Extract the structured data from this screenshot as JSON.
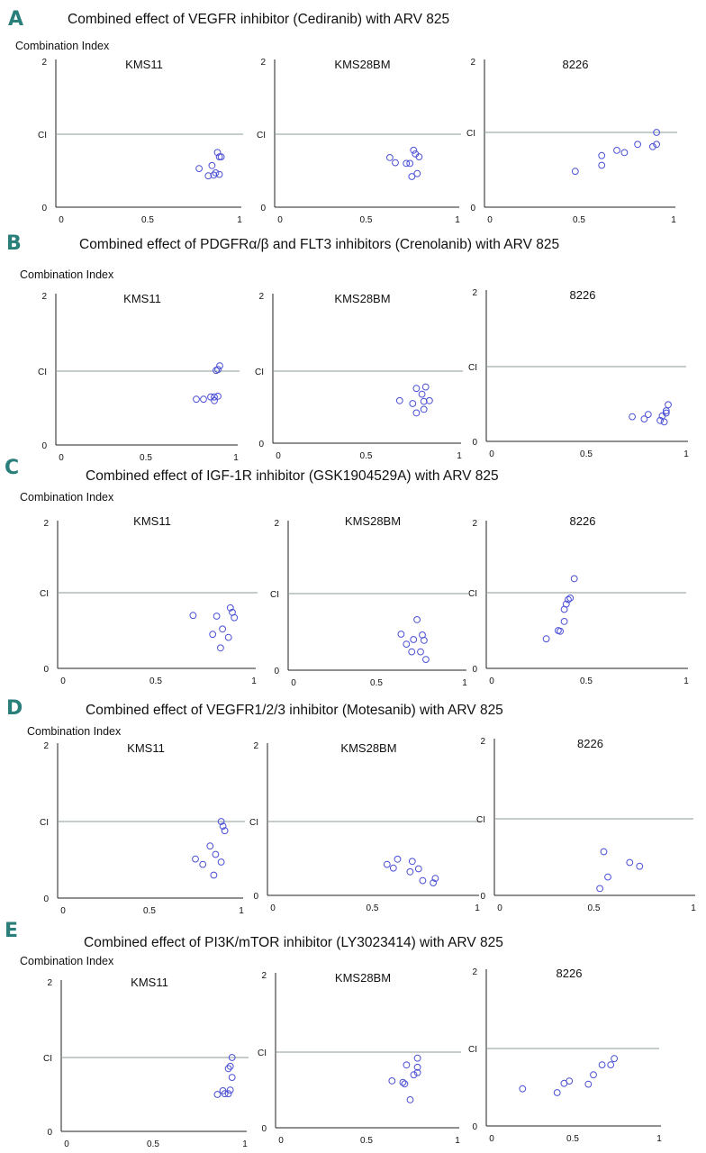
{
  "chart_data": [
    {
      "id": "A",
      "letter": "A",
      "title": "Combined effect of VEGFR inhibitor (Cediranib) with ARV 825",
      "ylabel": "Combination Index",
      "subplots": [
        {
          "type": "scatter",
          "title": "KMS11",
          "x_ticks": [
            "0",
            "0.5",
            "1"
          ],
          "y_ticks": [
            "0",
            "CI",
            "2"
          ],
          "xlim": [
            0,
            1
          ],
          "ylim": [
            0,
            2
          ],
          "reference_line": 1,
          "points": [
            [
              0.78,
              0.53
            ],
            [
              0.83,
              0.43
            ],
            [
              0.85,
              0.57
            ],
            [
              0.86,
              0.44
            ],
            [
              0.87,
              0.47
            ],
            [
              0.88,
              0.75
            ],
            [
              0.89,
              0.45
            ],
            [
              0.89,
              0.69
            ],
            [
              0.9,
              0.69
            ]
          ]
        },
        {
          "type": "scatter",
          "title": "KMS28BM",
          "x_ticks": [
            "0",
            "0.5",
            "1"
          ],
          "y_ticks": [
            "0",
            "CI",
            "2"
          ],
          "xlim": [
            0,
            1
          ],
          "ylim": [
            0,
            2
          ],
          "reference_line": 1,
          "points": [
            [
              0.63,
              0.68
            ],
            [
              0.66,
              0.61
            ],
            [
              0.72,
              0.6
            ],
            [
              0.74,
              0.6
            ],
            [
              0.75,
              0.42
            ],
            [
              0.76,
              0.78
            ],
            [
              0.77,
              0.73
            ],
            [
              0.78,
              0.46
            ],
            [
              0.79,
              0.69
            ]
          ]
        },
        {
          "type": "scatter",
          "title": "8226",
          "x_ticks": [
            "0",
            "0.5",
            "1"
          ],
          "y_ticks": [
            "0",
            "CI",
            "2"
          ],
          "xlim": [
            0,
            1
          ],
          "ylim": [
            0,
            2
          ],
          "reference_line": 1,
          "points": [
            [
              0.48,
              0.48
            ],
            [
              0.62,
              0.56
            ],
            [
              0.62,
              0.69
            ],
            [
              0.7,
              0.76
            ],
            [
              0.74,
              0.73
            ],
            [
              0.81,
              0.84
            ],
            [
              0.89,
              0.81
            ],
            [
              0.91,
              0.84
            ],
            [
              0.91,
              1.0
            ]
          ]
        }
      ]
    },
    {
      "id": "B",
      "letter": "B",
      "title": "Combined effect of PDGFRα/β and FLT3 inhibitors (Crenolanib) with ARV 825",
      "ylabel": "Combination Index",
      "subplots": [
        {
          "type": "scatter",
          "title": "KMS11",
          "x_ticks": [
            "0",
            "0.5",
            "1"
          ],
          "y_ticks": [
            "0",
            "CI",
            "2"
          ],
          "xlim": [
            0,
            1
          ],
          "ylim": [
            0,
            2
          ],
          "reference_line": 1,
          "points": [
            [
              0.78,
              0.62
            ],
            [
              0.82,
              0.62
            ],
            [
              0.86,
              0.65
            ],
            [
              0.88,
              0.65
            ],
            [
              0.88,
              0.6
            ],
            [
              0.9,
              0.66
            ],
            [
              0.89,
              1.01
            ],
            [
              0.9,
              1.02
            ],
            [
              0.91,
              1.07
            ]
          ]
        },
        {
          "type": "scatter",
          "title": "KMS28BM",
          "x_ticks": [
            "0",
            "0.5",
            "1"
          ],
          "y_ticks": [
            "0",
            "CI",
            "2"
          ],
          "xlim": [
            0,
            1
          ],
          "ylim": [
            0,
            2
          ],
          "reference_line": 1,
          "points": [
            [
              0.68,
              0.59
            ],
            [
              0.75,
              0.55
            ],
            [
              0.77,
              0.42
            ],
            [
              0.77,
              0.76
            ],
            [
              0.8,
              0.68
            ],
            [
              0.81,
              0.47
            ],
            [
              0.81,
              0.58
            ],
            [
              0.82,
              0.78
            ],
            [
              0.84,
              0.59
            ]
          ]
        },
        {
          "type": "scatter",
          "title": "8226",
          "x_ticks": [
            "0",
            "0.5",
            "1"
          ],
          "y_ticks": [
            "0",
            "CI",
            "2"
          ],
          "xlim": [
            0,
            1
          ],
          "ylim": [
            0,
            2
          ],
          "reference_line": 1,
          "points": [
            [
              0.73,
              0.33
            ],
            [
              0.79,
              0.3
            ],
            [
              0.81,
              0.36
            ],
            [
              0.87,
              0.28
            ],
            [
              0.88,
              0.34
            ],
            [
              0.89,
              0.26
            ],
            [
              0.9,
              0.38
            ],
            [
              0.9,
              0.41
            ],
            [
              0.91,
              0.49
            ]
          ]
        }
      ]
    },
    {
      "id": "C",
      "letter": "C",
      "title": "Combined effect of IGF-1R inhibitor (GSK1904529A) with ARV 825",
      "ylabel": "Combination Index",
      "subplots": [
        {
          "type": "scatter",
          "title": "KMS11",
          "x_ticks": [
            "0",
            "0.5",
            "1"
          ],
          "y_ticks": [
            "0",
            "CI",
            "2"
          ],
          "xlim": [
            0,
            1
          ],
          "ylim": [
            0,
            2
          ],
          "reference_line": 1,
          "points": [
            [
              0.69,
              0.7
            ],
            [
              0.79,
              0.45
            ],
            [
              0.81,
              0.69
            ],
            [
              0.83,
              0.27
            ],
            [
              0.84,
              0.52
            ],
            [
              0.87,
              0.41
            ],
            [
              0.88,
              0.8
            ],
            [
              0.89,
              0.74
            ],
            [
              0.9,
              0.67
            ]
          ]
        },
        {
          "type": "scatter",
          "title": "KMS28BM",
          "x_ticks": [
            "0",
            "0.5",
            "1"
          ],
          "y_ticks": [
            "0",
            "CI",
            "2"
          ],
          "xlim": [
            0,
            1
          ],
          "ylim": [
            0,
            2
          ],
          "reference_line": 1,
          "points": [
            [
              0.64,
              0.47
            ],
            [
              0.67,
              0.34
            ],
            [
              0.7,
              0.24
            ],
            [
              0.71,
              0.4
            ],
            [
              0.73,
              0.66
            ],
            [
              0.75,
              0.24
            ],
            [
              0.76,
              0.46
            ],
            [
              0.77,
              0.39
            ],
            [
              0.78,
              0.14
            ]
          ]
        },
        {
          "type": "scatter",
          "title": "8226",
          "x_ticks": [
            "0",
            "0.5",
            "1"
          ],
          "y_ticks": [
            "0",
            "CI",
            "2"
          ],
          "xlim": [
            0,
            1
          ],
          "ylim": [
            0,
            2
          ],
          "reference_line": 1,
          "points": [
            [
              0.3,
              0.39
            ],
            [
              0.36,
              0.5
            ],
            [
              0.37,
              0.49
            ],
            [
              0.39,
              0.62
            ],
            [
              0.39,
              0.78
            ],
            [
              0.4,
              0.85
            ],
            [
              0.41,
              0.91
            ],
            [
              0.42,
              0.93
            ],
            [
              0.44,
              1.2
            ]
          ]
        }
      ]
    },
    {
      "id": "D",
      "letter": "D",
      "title": "Combined effect of VEGFR1/2/3 inhibitor (Motesanib) with ARV 825",
      "ylabel": "Combination Index",
      "subplots": [
        {
          "type": "scatter",
          "title": "KMS11",
          "x_ticks": [
            "0",
            "0.5",
            "1"
          ],
          "y_ticks": [
            "0",
            "CI",
            "2"
          ],
          "xlim": [
            0,
            1
          ],
          "ylim": [
            0,
            2
          ],
          "reference_line": 1,
          "points": [
            [
              0.75,
              0.51
            ],
            [
              0.79,
              0.44
            ],
            [
              0.83,
              0.68
            ],
            [
              0.85,
              0.3
            ],
            [
              0.86,
              0.57
            ],
            [
              0.89,
              0.47
            ],
            [
              0.89,
              1.0
            ],
            [
              0.9,
              0.94
            ],
            [
              0.91,
              0.88
            ]
          ]
        },
        {
          "type": "scatter",
          "title": "KMS28BM",
          "x_ticks": [
            "0",
            "0.5",
            "1"
          ],
          "y_ticks": [
            "0",
            "CI",
            "2"
          ],
          "xlim": [
            0,
            1
          ],
          "ylim": [
            0,
            2
          ],
          "reference_line": 1,
          "points": [
            [
              0.57,
              0.42
            ],
            [
              0.6,
              0.37
            ],
            [
              0.62,
              0.49
            ],
            [
              0.68,
              0.32
            ],
            [
              0.69,
              0.46
            ],
            [
              0.72,
              0.36
            ],
            [
              0.74,
              0.2
            ],
            [
              0.79,
              0.17
            ],
            [
              0.8,
              0.23
            ]
          ]
        },
        {
          "type": "scatter",
          "title": "8226",
          "x_ticks": [
            "0",
            "0.5",
            "1"
          ],
          "y_ticks": [
            "0",
            "CI",
            "2"
          ],
          "xlim": [
            0,
            1
          ],
          "ylim": [
            0,
            2
          ],
          "reference_line": 1,
          "points": [
            [
              0.53,
              0.09
            ],
            [
              0.55,
              0.57
            ],
            [
              0.57,
              0.24
            ],
            [
              0.68,
              0.43
            ],
            [
              0.73,
              0.38
            ]
          ]
        }
      ]
    },
    {
      "id": "E",
      "letter": "E",
      "title": "Combined effect of PI3K/mTOR inhibitor (LY3023414) with ARV 825",
      "ylabel": "Combination Index",
      "subplots": [
        {
          "type": "scatter",
          "title": "KMS11",
          "x_ticks": [
            "0",
            "0.5",
            "1"
          ],
          "y_ticks": [
            "0",
            "CI",
            "2"
          ],
          "xlim": [
            0,
            1
          ],
          "ylim": [
            0,
            2
          ],
          "reference_line": 1,
          "points": [
            [
              0.85,
              0.5
            ],
            [
              0.88,
              0.55
            ],
            [
              0.89,
              0.51
            ],
            [
              0.91,
              0.85
            ],
            [
              0.91,
              0.51
            ],
            [
              0.92,
              0.88
            ],
            [
              0.92,
              0.56
            ],
            [
              0.93,
              0.73
            ],
            [
              0.93,
              1.0
            ]
          ]
        },
        {
          "type": "scatter",
          "title": "KMS28BM",
          "x_ticks": [
            "0",
            "0.5",
            "1"
          ],
          "y_ticks": [
            "0",
            "CI",
            "2"
          ],
          "xlim": [
            0,
            1
          ],
          "ylim": [
            0,
            2
          ],
          "reference_line": 1,
          "points": [
            [
              0.64,
              0.62
            ],
            [
              0.7,
              0.6
            ],
            [
              0.71,
              0.58
            ],
            [
              0.72,
              0.83
            ],
            [
              0.74,
              0.37
            ],
            [
              0.76,
              0.7
            ],
            [
              0.78,
              0.73
            ],
            [
              0.78,
              0.8
            ],
            [
              0.78,
              0.92
            ]
          ]
        },
        {
          "type": "scatter",
          "title": "8226",
          "x_ticks": [
            "0",
            "0.5",
            "1"
          ],
          "y_ticks": [
            "0",
            "CI",
            "2"
          ],
          "xlim": [
            0,
            1
          ],
          "ylim": [
            0,
            2
          ],
          "reference_line": 1,
          "points": [
            [
              0.21,
              0.48
            ],
            [
              0.41,
              0.43
            ],
            [
              0.45,
              0.55
            ],
            [
              0.48,
              0.58
            ],
            [
              0.59,
              0.54
            ],
            [
              0.62,
              0.66
            ],
            [
              0.67,
              0.79
            ],
            [
              0.72,
              0.79
            ],
            [
              0.74,
              0.87
            ]
          ]
        }
      ]
    }
  ],
  "style": {
    "marker_color": "#4a4fd4",
    "reference_line_color": "#8a9a9a",
    "axis_color": "#222222",
    "letter_color": "#2a7f7a"
  }
}
